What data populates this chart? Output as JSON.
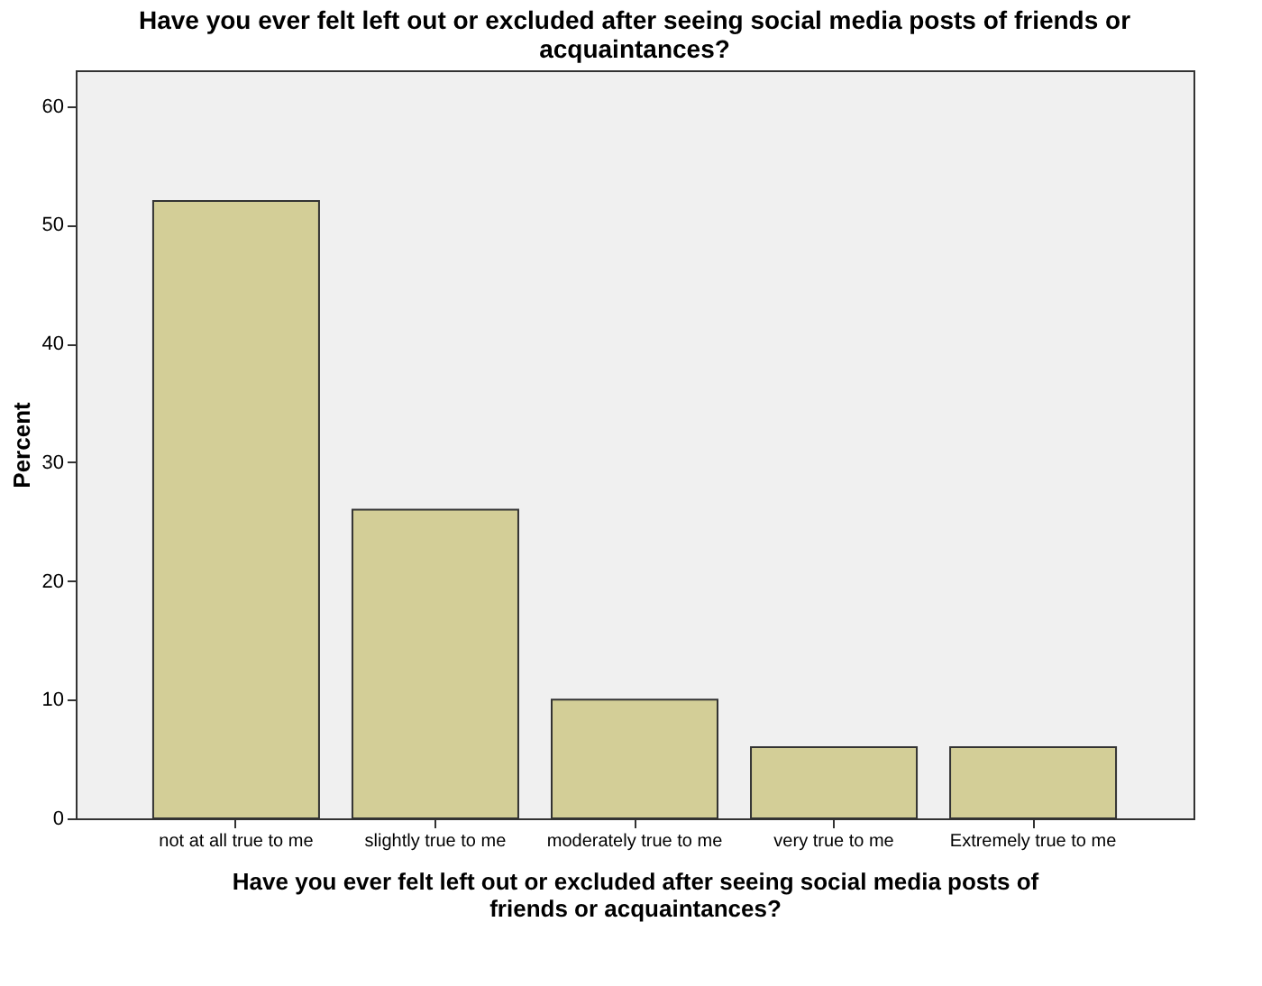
{
  "chart_data": {
    "type": "bar",
    "title": "Have you ever felt left out or excluded after seeing social media posts of friends or acquaintances?",
    "xlabel": "Have you ever felt left out or excluded after seeing social media posts of friends or acquaintances?",
    "ylabel": "Percent",
    "categories": [
      "not at all true to me",
      "slightly true to me",
      "moderately true to me",
      "very true to me",
      "Extremely true to me"
    ],
    "values": [
      52,
      26,
      10,
      6,
      6
    ],
    "color": "#d3ce97",
    "ylim": [
      0,
      63
    ],
    "yticks": [
      0,
      10,
      20,
      30,
      40,
      50,
      60
    ],
    "grid": false
  }
}
